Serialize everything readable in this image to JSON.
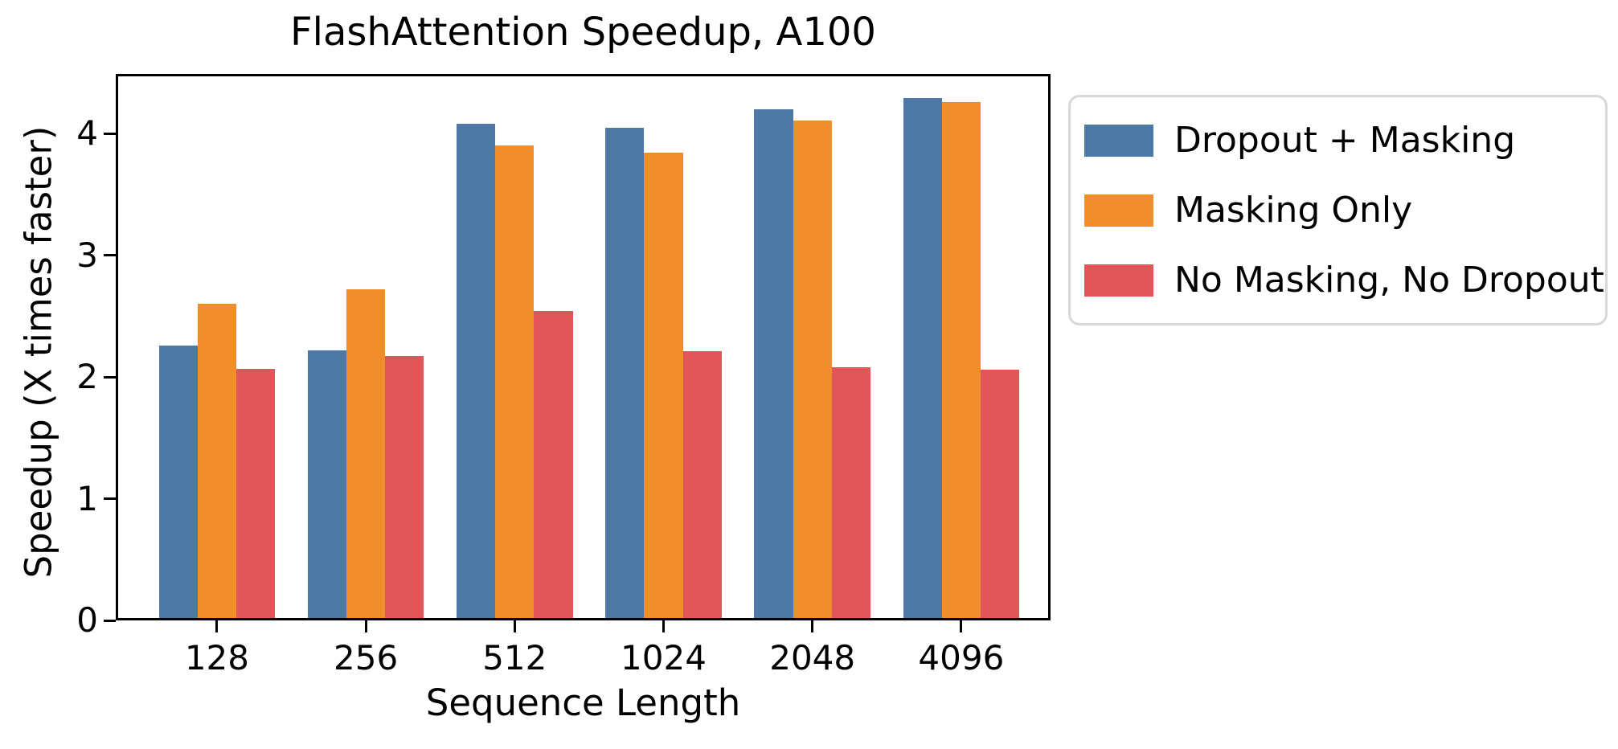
{
  "figure": {
    "title": "FlashAttention Speedup, A100",
    "xlabel": "Sequence Length",
    "ylabel": "Speedup (X times faster)"
  },
  "colors": {
    "axis": "#000000",
    "legend_border": "#d8d8d8",
    "background": "#ffffff"
  },
  "chart_data": {
    "type": "bar",
    "title": "FlashAttention Speedup, A100",
    "xlabel": "Sequence Length",
    "ylabel": "Speedup (X times faster)",
    "categories": [
      "128",
      "256",
      "512",
      "1024",
      "2048",
      "4096"
    ],
    "series": [
      {
        "name": "Dropout + Masking",
        "color": "#4E79A7",
        "values": [
          2.24,
          2.2,
          4.06,
          4.03,
          4.18,
          4.27
        ]
      },
      {
        "name": "Masking Only",
        "color": "#F18E2C",
        "values": [
          2.58,
          2.7,
          3.88,
          3.82,
          4.09,
          4.24
        ]
      },
      {
        "name": "No Masking, No Dropout",
        "color": "#E15759",
        "values": [
          2.05,
          2.15,
          2.52,
          2.19,
          2.06,
          2.04
        ]
      }
    ],
    "yticks": [
      0,
      1,
      2,
      3,
      4
    ],
    "ylim": [
      0,
      4.49
    ],
    "grid": false,
    "legend_position": "outside upper right",
    "bar_group_width": 0.75
  }
}
